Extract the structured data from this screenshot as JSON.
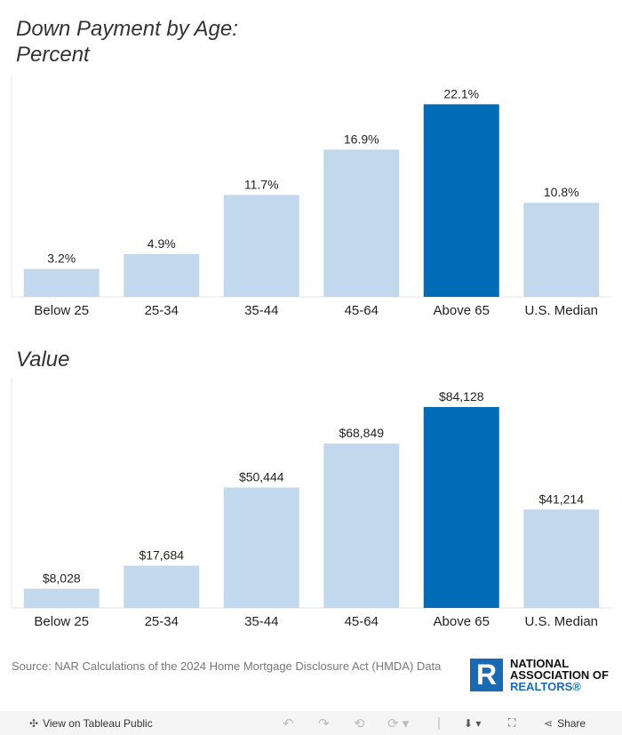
{
  "chart_data": [
    {
      "type": "bar",
      "title": "Down Payment by Age:\nPercent",
      "title_lines": [
        "Down Payment by Age:",
        "Percent"
      ],
      "categories": [
        "Below 25",
        "25-34",
        "35-44",
        "45-64",
        "Above 65",
        "U.S. Median"
      ],
      "values": [
        3.2,
        4.9,
        11.7,
        16.9,
        22.1,
        10.8
      ],
      "labels": [
        "3.2%",
        "4.9%",
        "11.7%",
        "16.9%",
        "22.1%",
        "10.8%"
      ],
      "ylim": [
        0,
        25.4
      ],
      "grid": false,
      "highlight_index": 4
    },
    {
      "type": "bar",
      "title": "Value",
      "title_lines": [
        "Value"
      ],
      "categories": [
        "Below 25",
        "25-34",
        "35-44",
        "45-64",
        "Above 65",
        "U.S. Median"
      ],
      "values": [
        8028,
        17684,
        50444,
        68849,
        84128,
        41214
      ],
      "labels": [
        "$8,028",
        "$17,684",
        "$50,444",
        "$68,849",
        "$84,128",
        "$41,214"
      ],
      "ylim": [
        0,
        96400
      ],
      "grid": false,
      "highlight_index": 4
    }
  ],
  "colors": {
    "bar": "#c2d8ec",
    "highlight": "#006bb6",
    "text": "#222"
  },
  "source": "Source: NAR Calculations of the 2024 Home Mortgage Disclosure Act (HMDA) Data",
  "logo": {
    "mark": "R",
    "line1": "NATIONAL",
    "line2": "ASSOCIATION OF",
    "line3": "REALTORS®"
  },
  "toolbar": {
    "view_label": "View on Tableau Public",
    "share_label": "Share"
  }
}
